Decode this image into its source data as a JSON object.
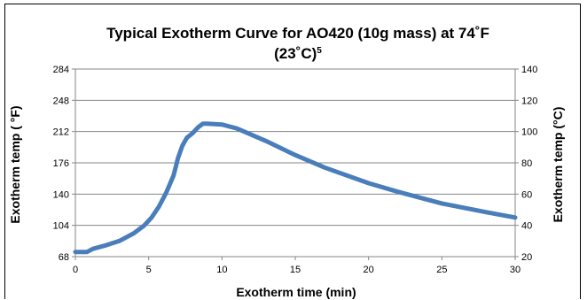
{
  "chart_data": {
    "type": "line",
    "title_line1": "Typical Exotherm Curve for AO420 (10g mass) at 74˚F",
    "title_line2": "(23˚C)",
    "title_superscript": "5",
    "xlabel": "Exotherm time (min)",
    "ylabel_left": "Exotherm temp ( °F)",
    "ylabel_right": "Exotherm temp (°C)",
    "xlim": [
      0,
      30
    ],
    "ylim_left": [
      68,
      284
    ],
    "ylim_right": [
      20,
      140
    ],
    "x_ticks": [
      "0",
      "5",
      "10",
      "15",
      "20",
      "25",
      "30"
    ],
    "y_ticks_left": [
      "68",
      "104",
      "140",
      "176",
      "212",
      "248",
      "284"
    ],
    "y_ticks_right": [
      "20",
      "40",
      "60",
      "80",
      "100",
      "120",
      "140"
    ],
    "grid": true,
    "line_color": "#4a7ebb",
    "series": [
      {
        "x": [
          0,
          0.8,
          1.2,
          2,
          3,
          4,
          4.7,
          5.2,
          5.7,
          6.2,
          6.7,
          7.0,
          7.3,
          7.6,
          8.0,
          8.4,
          8.7,
          9.0,
          10,
          11,
          12,
          13,
          15,
          17,
          20,
          22,
          25,
          28,
          30
        ],
        "y": [
          23,
          23,
          25,
          27,
          30,
          35,
          40,
          45,
          52,
          61,
          72,
          83,
          91,
          96,
          99,
          103,
          105,
          105,
          104.5,
          102,
          98,
          94,
          85,
          77,
          67,
          61.5,
          54,
          48.5,
          45
        ]
      }
    ]
  }
}
